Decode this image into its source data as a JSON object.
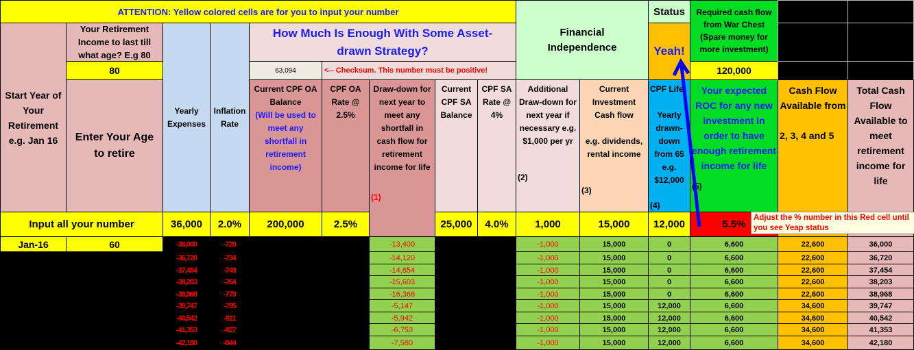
{
  "attention": "ATTENTION:  Yellow colored cells are for you to input your number",
  "title": "How Much Is Enough With Some Asset-drawn Strategy?",
  "checksum": {
    "value": "63,094",
    "note": "<--  Checksum. This number must be positive!"
  },
  "financial_independence": "Financial Independence",
  "status": {
    "label": "Status",
    "value": "Yeah!"
  },
  "war_chest": {
    "label": "Required cash flow from War Chest (Spare money for more investment)",
    "value": "120,000"
  },
  "retire_till": {
    "label": "Your Retirement Income to last till what age? E.g 80",
    "value": "80"
  },
  "headers": {
    "start_year": "Start Year of Your Retirement e.g. Jan 16",
    "enter_age": "Enter Your Age to retire",
    "yearly_expenses": "Yearly Expenses",
    "inflation_rate": "Inflation Rate",
    "cpf_oa_balance": "Current CPF OA Balance",
    "cpf_oa_balance_note": "(Will be used to meet any shortfall in retirement income)",
    "cpf_oa_rate": "CPF OA Rate @ 2.5%",
    "drawdown": "Draw-down for next year to meet any shortfall in cash flow for retirement income for life",
    "drawdown_num": "(1)",
    "cpf_sa_balance": "Current CPF SA Balance",
    "cpf_sa_rate": "CPF SA Rate @ 4%",
    "additional": "Additional Draw-down for next year if necessary e.g. $1,000 per yr",
    "additional_num": "(2)",
    "investment": "Current Investment Cash flow",
    "investment_eg": "e.g. dividends, rental income",
    "investment_num": "(3)",
    "cpf_life": "CPF Life",
    "cpf_life_desc": "Yearly drawn-down from 65 e.g. $12,000",
    "cpf_life_num": "(4)",
    "roc": "Your expected ROC for any new investment in order to have enough retirement income for life",
    "roc_num": "(5)",
    "cash_flow": "Cash Flow Available from",
    "cash_flow_sub": "2, 3, 4 and 5",
    "total": "Total Cash Flow Available to meet retirement income for life"
  },
  "inputs": {
    "label": "Input all your number",
    "yearly_expenses": "36,000",
    "inflation_rate": "2.0%",
    "cpf_oa_balance": "200,000",
    "cpf_oa_rate": "2.5%",
    "cpf_sa_balance": "25,000",
    "cpf_sa_rate": "4.0%",
    "additional": "1,000",
    "investment": "15,000",
    "cpf_life": "12,000",
    "roc": "5.5%"
  },
  "tooltip": "Adjust the %  number in this Red cell until you see Yeap status",
  "first_row": {
    "start": "Jan-16",
    "age": "60"
  },
  "rows": [
    {
      "expenses": "-36,000",
      "inflation": "-720",
      "drawdown": "-13,400",
      "additional": "-1,000",
      "investment": "15,000",
      "cpf_life": "0",
      "roc": "6,600",
      "cash_flow": "22,600",
      "total": "36,000"
    },
    {
      "expenses": "-36,720",
      "inflation": "-734",
      "drawdown": "-14,120",
      "additional": "-1,000",
      "investment": "15,000",
      "cpf_life": "0",
      "roc": "6,600",
      "cash_flow": "22,600",
      "total": "36,720"
    },
    {
      "expenses": "-37,454",
      "inflation": "-749",
      "drawdown": "-14,854",
      "additional": "-1,000",
      "investment": "15,000",
      "cpf_life": "0",
      "roc": "6,600",
      "cash_flow": "22,600",
      "total": "37,454"
    },
    {
      "expenses": "-38,203",
      "inflation": "-764",
      "drawdown": "-15,603",
      "additional": "-1,000",
      "investment": "15,000",
      "cpf_life": "0",
      "roc": "6,600",
      "cash_flow": "22,600",
      "total": "38,203"
    },
    {
      "expenses": "-38,968",
      "inflation": "-779",
      "drawdown": "-16,368",
      "additional": "-1,000",
      "investment": "15,000",
      "cpf_life": "0",
      "roc": "6,600",
      "cash_flow": "22,600",
      "total": "38,968"
    },
    {
      "expenses": "-39,747",
      "inflation": "-795",
      "drawdown": "-5,147",
      "additional": "-1,000",
      "investment": "15,000",
      "cpf_life": "12,000",
      "roc": "6,600",
      "cash_flow": "34,600",
      "total": "39,747"
    },
    {
      "expenses": "-40,542",
      "inflation": "-811",
      "drawdown": "-5,942",
      "additional": "-1,000",
      "investment": "15,000",
      "cpf_life": "12,000",
      "roc": "6,600",
      "cash_flow": "34,600",
      "total": "40,542"
    },
    {
      "expenses": "-41,353",
      "inflation": "-827",
      "drawdown": "-6,753",
      "additional": "-1,000",
      "investment": "15,000",
      "cpf_life": "12,000",
      "roc": "6,600",
      "cash_flow": "34,600",
      "total": "41,353"
    },
    {
      "expenses": "-42,180",
      "inflation": "-844",
      "drawdown": "-7,580",
      "additional": "-1,000",
      "investment": "15,000",
      "cpf_life": "12,000",
      "roc": "6,600",
      "cash_flow": "34,600",
      "total": "42,180"
    }
  ]
}
